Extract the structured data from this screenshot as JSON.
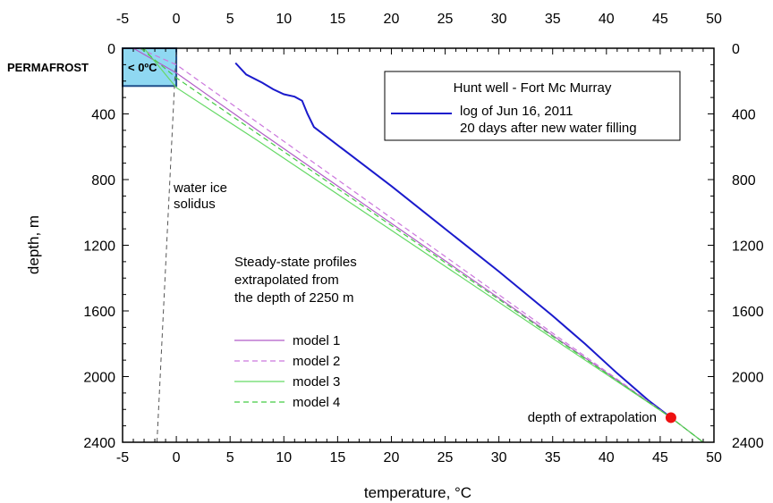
{
  "chart_data": {
    "type": "line",
    "xlabel": "temperature, °C",
    "ylabel": "depth, m",
    "xlim": [
      -5,
      50
    ],
    "ylim": [
      0,
      2400
    ],
    "y_inverted": true,
    "x_ticks": [
      -5,
      0,
      5,
      10,
      15,
      20,
      25,
      30,
      35,
      40,
      45,
      50
    ],
    "y_ticks": [
      0,
      400,
      800,
      1200,
      1600,
      2000,
      2400
    ],
    "grid": false,
    "legend_main": {
      "title": "Hunt well - Fort Mc Murray",
      "line1": "log of Jun 16, 2011",
      "line2": "20 days after new water filling",
      "color": "#1a1acc"
    },
    "legend_models": {
      "title_lines": [
        "Steady-state profiles",
        "extrapolated from",
        "the depth of 2250 m"
      ]
    },
    "annotations": {
      "permafrost": "PERMAFROST",
      "permafrost_temp": "< 0ºC",
      "solidus_line1": "water ice",
      "solidus_line2": "solidus",
      "extrapolation": "depth of extrapolation"
    },
    "permafrost_box": {
      "x": [
        -5,
        0
      ],
      "y": [
        0,
        230
      ],
      "fill": "#8fd8f2",
      "stroke": "#1f4f8a"
    },
    "solidus": {
      "x": [
        -1.8,
        0
      ],
      "y": [
        2400,
        0
      ],
      "color": "#555555"
    },
    "extrapolation_point": {
      "x": 46,
      "y": 2250,
      "color": "#ee1111"
    },
    "series": [
      {
        "name": "log of Jun 16, 2011",
        "color": "#1a1acc",
        "dash": "",
        "width": 2,
        "x": [
          5.5,
          6.5,
          8.0,
          9.0,
          10.0,
          11.0,
          11.7,
          12.2,
          12.8,
          14.0,
          16.0,
          20.0,
          25.0,
          30.0,
          35.0,
          38.0,
          41.0,
          44.0,
          46.0
        ],
        "y": [
          90,
          160,
          210,
          250,
          280,
          295,
          320,
          400,
          480,
          540,
          640,
          840,
          1100,
          1360,
          1630,
          1800,
          1980,
          2150,
          2250
        ]
      },
      {
        "name": "model 1",
        "color": "#b15cc6",
        "dash": "",
        "width": 1.2,
        "x": [
          -4.0,
          0.0,
          8.0,
          46.0,
          49.0
        ],
        "y": [
          0,
          150,
          520,
          2250,
          2400
        ]
      },
      {
        "name": "model 2",
        "color": "#cc77dd",
        "dash": "6,4",
        "width": 1.2,
        "x": [
          -3.5,
          0.0,
          9.0,
          46.0,
          49.0
        ],
        "y": [
          0,
          100,
          520,
          2250,
          2400
        ]
      },
      {
        "name": "model 3",
        "color": "#66d966",
        "dash": "",
        "width": 1.2,
        "x": [
          -3.0,
          0.0,
          7.5,
          46.0,
          49.0
        ],
        "y": [
          0,
          240,
          560,
          2250,
          2400
        ]
      },
      {
        "name": "model 4",
        "color": "#44cc44",
        "dash": "6,4",
        "width": 1.2,
        "x": [
          -3.3,
          0.0,
          8.0,
          46.0,
          49.0
        ],
        "y": [
          0,
          180,
          540,
          2250,
          2400
        ]
      }
    ]
  }
}
